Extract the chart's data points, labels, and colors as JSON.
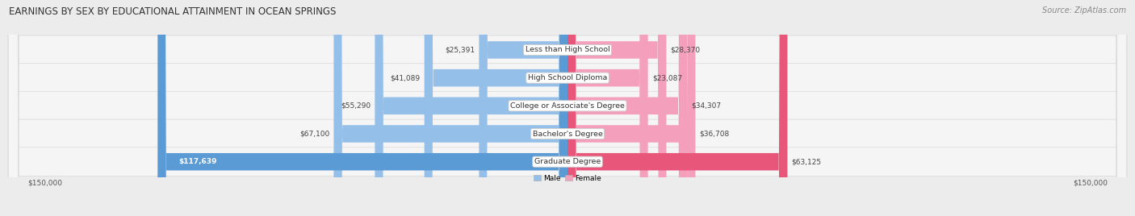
{
  "title": "EARNINGS BY SEX BY EDUCATIONAL ATTAINMENT IN OCEAN SPRINGS",
  "source": "Source: ZipAtlas.com",
  "categories": [
    "Less than High School",
    "High School Diploma",
    "College or Associate's Degree",
    "Bachelor's Degree",
    "Graduate Degree"
  ],
  "male_values": [
    25391,
    41089,
    55290,
    67100,
    117639
  ],
  "female_values": [
    28370,
    23087,
    34307,
    36708,
    63125
  ],
  "male_colors": [
    "#94bfe8",
    "#94bfe8",
    "#94bfe8",
    "#94bfe8",
    "#5b9bd5"
  ],
  "female_colors": [
    "#f4a0bc",
    "#f4a0bc",
    "#f4a0bc",
    "#f4a0bc",
    "#e8577a"
  ],
  "male_label": "Male",
  "female_label": "Female",
  "x_max": 150000,
  "title_fontsize": 8.5,
  "source_fontsize": 7,
  "bar_fontsize": 6.5,
  "label_fontsize": 6.8,
  "value_fontsize": 6.5
}
